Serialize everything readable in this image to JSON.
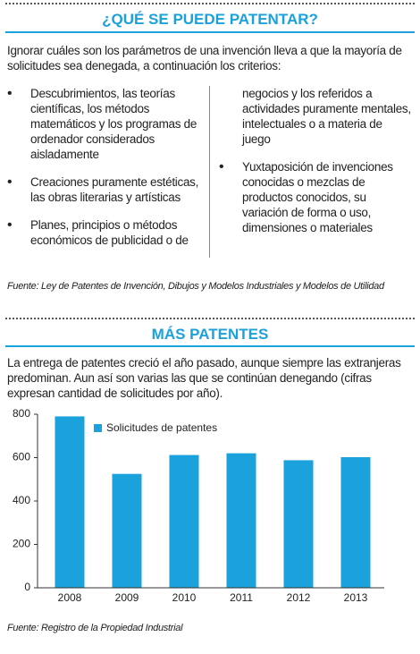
{
  "section1": {
    "title": "¿QUÉ SE PUEDE PATENTAR?",
    "intro": "Ignorar cuáles son los parámetros de una invención lleva a que la mayoría de solicitudes sea denegada, a continuación los criterios:",
    "items": [
      "Descubrimientos, las teorías científicas, los métodos matemáticos y los programas de ordenador considerados aisladamente",
      "Creaciones puramente estéticas, las obras literarias y artísticas",
      "Planes, principios o métodos económicos de publicidad o de negocios y los referidos a actividades puramente mentales, intelectuales o a materia de juego",
      "Yuxtaposición de invenciones conocidas o mezclas de productos conocidos, su variación de forma o uso, dimensiones o materiales"
    ],
    "source": "Fuente: Ley de Patentes de Invención, Dibujos y Modelos Industriales y Modelos de Utilidad"
  },
  "section2": {
    "title": "MÁS PATENTES",
    "intro": "La entrega de patentes creció el año pasado, aunque siempre las extranjeras predominan. Aun así son varias las que se continúan denegando (cifras expresan cantidad de solicitudes por año).",
    "source": "Fuente: Registro de la Propiedad Industrial"
  },
  "chart_data": {
    "type": "bar",
    "categories": [
      "2008",
      "2009",
      "2010",
      "2011",
      "2012",
      "2013"
    ],
    "series": [
      {
        "name": "Solicitudes de patentes",
        "color": "#1ba1db",
        "values": [
          790,
          525,
          612,
          620,
          588,
          602
        ]
      }
    ],
    "ylim": [
      0,
      800
    ],
    "yticks": [
      0,
      200,
      400,
      600,
      800
    ],
    "legend": "top-left"
  }
}
